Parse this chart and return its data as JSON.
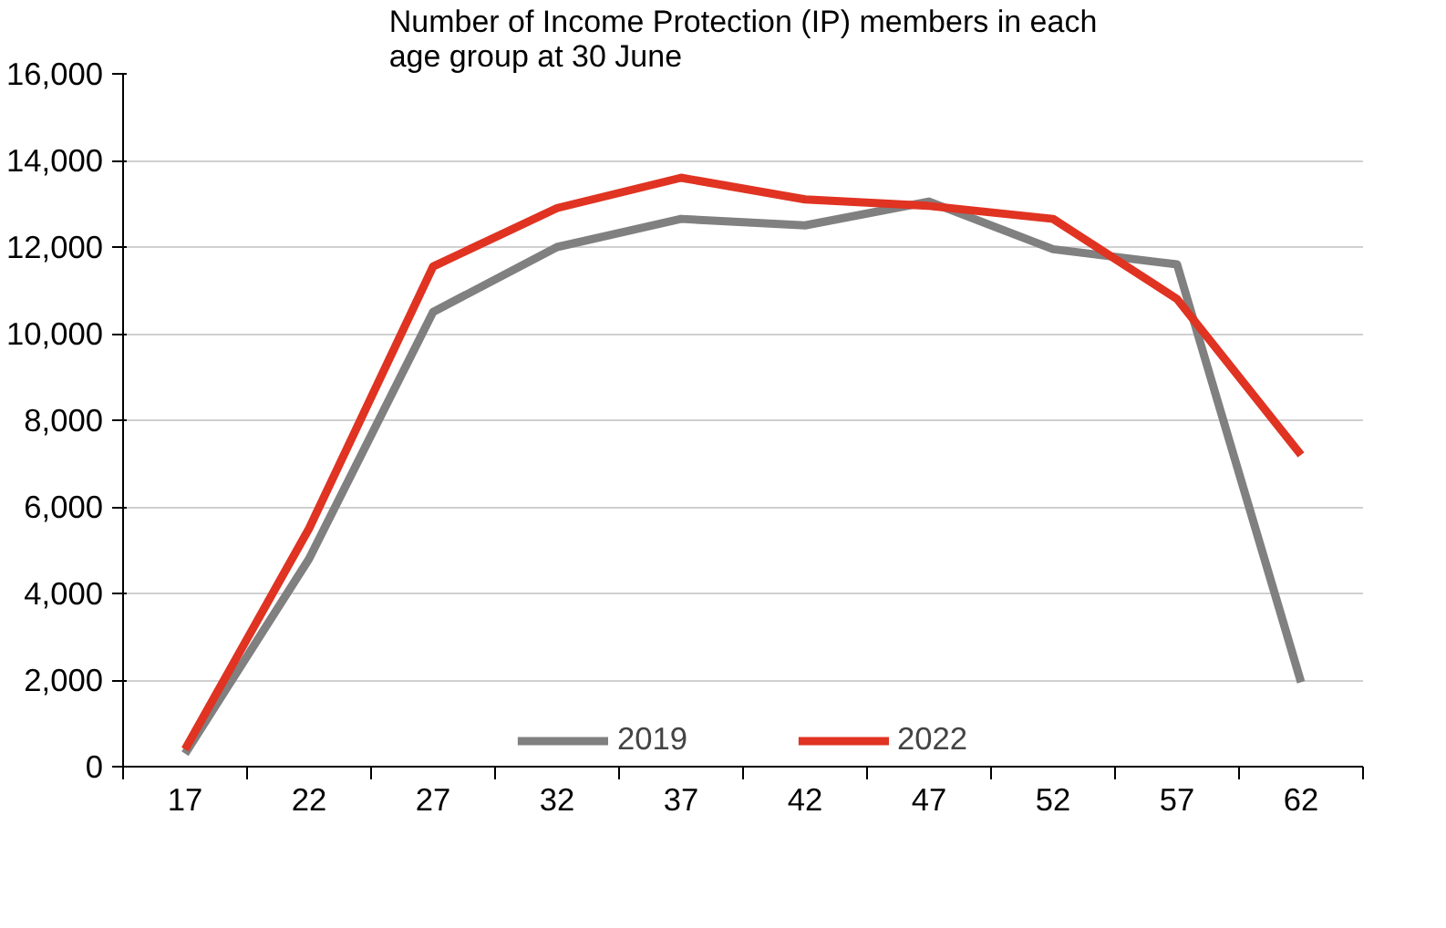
{
  "chart_data": {
    "type": "line",
    "title": "Number of Income Protection (IP) members in each age group at 30 June",
    "categories": [
      "17",
      "22",
      "27",
      "32",
      "37",
      "42",
      "47",
      "52",
      "57",
      "62"
    ],
    "series": [
      {
        "name": "2019",
        "color": "#808080",
        "values": [
          300,
          4800,
          10500,
          12000,
          12650,
          12500,
          13050,
          11950,
          11600,
          1950
        ]
      },
      {
        "name": "2022",
        "color": "#e03322",
        "values": [
          400,
          5500,
          11550,
          12900,
          13600,
          13100,
          12950,
          12650,
          10800,
          7200
        ]
      }
    ],
    "ylim": [
      0,
      16000
    ],
    "yticks": [
      0,
      {
        "value": 2000,
        "label": "2,000"
      },
      {
        "value": 4000,
        "label": "4,000"
      },
      {
        "value": 6000,
        "label": "6,000"
      },
      {
        "value": 8000,
        "label": "8,000"
      },
      {
        "value": 10000,
        "label": "10,000"
      },
      {
        "value": 12000,
        "label": "12,000"
      },
      {
        "value": 14000,
        "label": "14,000"
      },
      {
        "value": 16000,
        "label": "16,000"
      }
    ],
    "grid": "y",
    "legend": "bottom",
    "marker": "none",
    "line_style": "solid"
  }
}
